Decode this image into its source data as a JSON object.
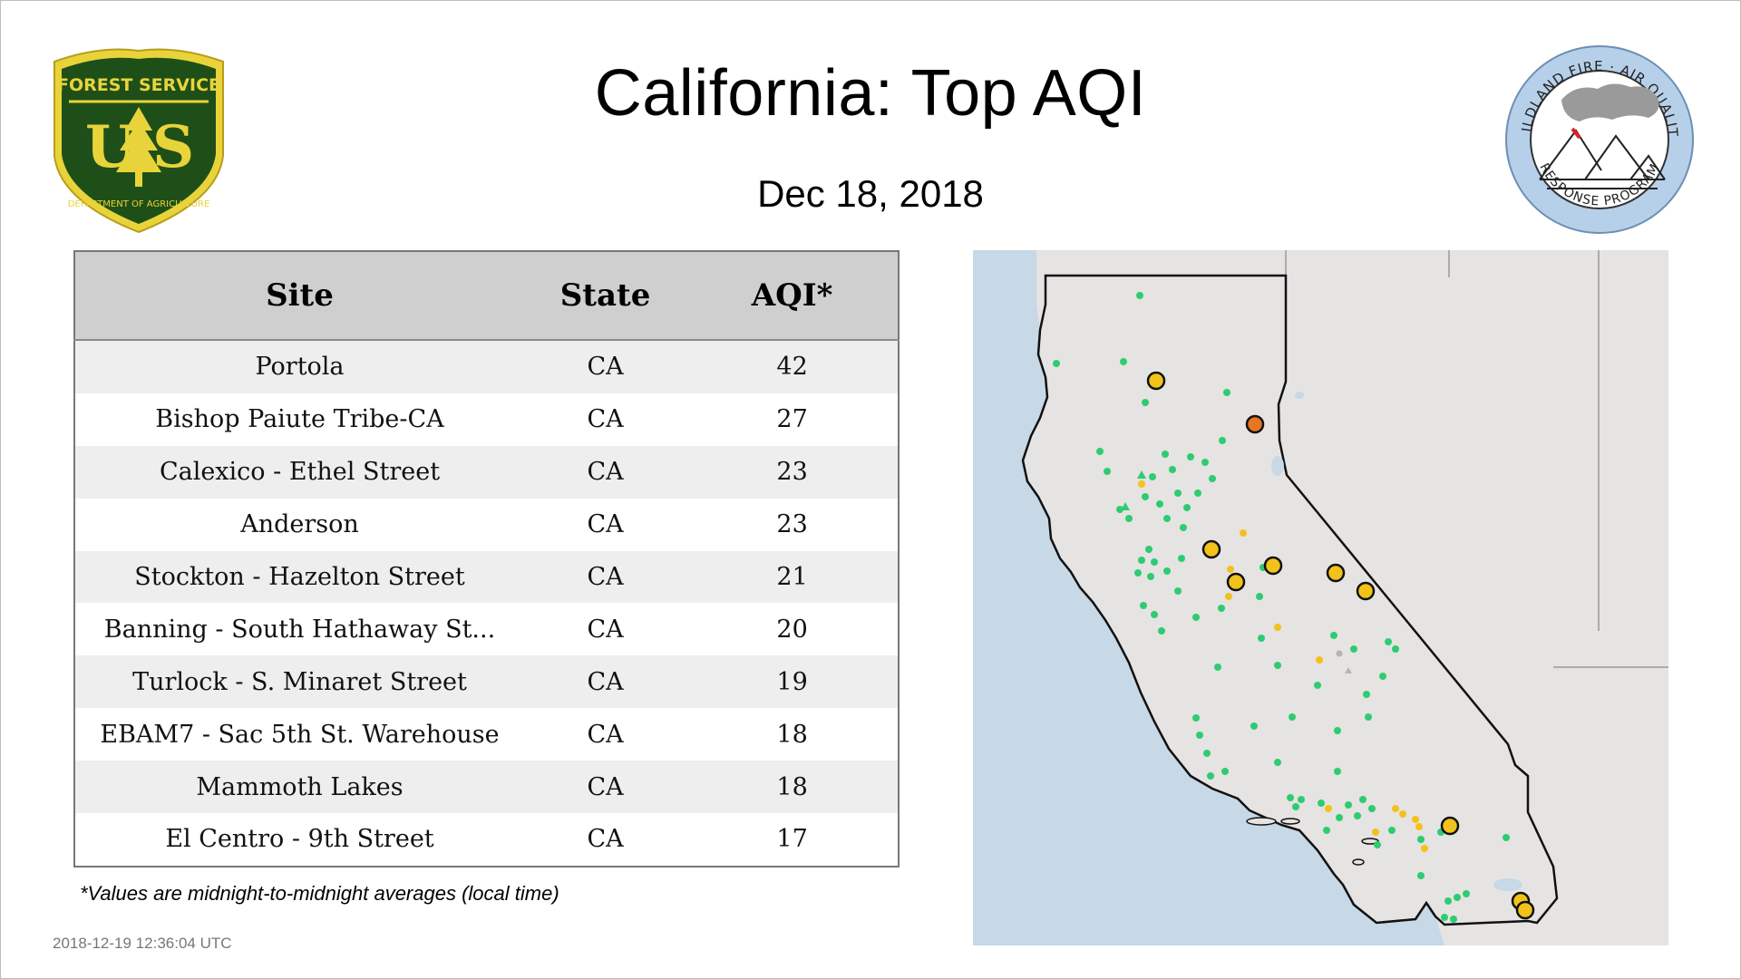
{
  "header": {
    "title": "California: Top AQI",
    "date": "Dec 18, 2018"
  },
  "logos": {
    "left": {
      "top_text": "FOREST SERVICE",
      "letters": "U S",
      "bottom_text": "DEPARTMENT OF AGRICULTURE",
      "colors": {
        "green": "#1f4f18",
        "gold": "#e8d43a"
      }
    },
    "right": {
      "top_text": "WILDLAND FIRE · AIR QUALITY",
      "bottom_text": "RESPONSE PROGRAM",
      "colors": {
        "ring": "#b7d0ea",
        "line": "#333333"
      }
    }
  },
  "table": {
    "columns": [
      "Site",
      "State",
      "AQI*"
    ],
    "rows": [
      {
        "site": "Portola",
        "state": "CA",
        "aqi": "42"
      },
      {
        "site": "Bishop Paiute Tribe-CA",
        "state": "CA",
        "aqi": "27"
      },
      {
        "site": "Calexico - Ethel Street",
        "state": "CA",
        "aqi": "23"
      },
      {
        "site": "Anderson",
        "state": "CA",
        "aqi": "23"
      },
      {
        "site": "Stockton - Hazelton Street",
        "state": "CA",
        "aqi": "21"
      },
      {
        "site": "Banning - South Hathaway St...",
        "state": "CA",
        "aqi": "20"
      },
      {
        "site": "Turlock - S. Minaret Street",
        "state": "CA",
        "aqi": "19"
      },
      {
        "site": "EBAM7 - Sac 5th St. Warehouse",
        "state": "CA",
        "aqi": "18"
      },
      {
        "site": "Mammoth Lakes",
        "state": "CA",
        "aqi": "18"
      },
      {
        "site": "El Centro - 9th Street",
        "state": "CA",
        "aqi": "17"
      }
    ]
  },
  "footnote": "*Values are midnight-to-midnight averages (local time)",
  "timestamp": "2018-12-19 12:36:04 UTC",
  "map": {
    "colors": {
      "ocean": "#c7d8e6",
      "land": "#e6e3e3",
      "good": "#2ecc71",
      "moderate": "#f2c21b",
      "unhealthy_sensitive": "#e8761e",
      "outline": "#000000",
      "state_border": "#999999"
    }
  }
}
